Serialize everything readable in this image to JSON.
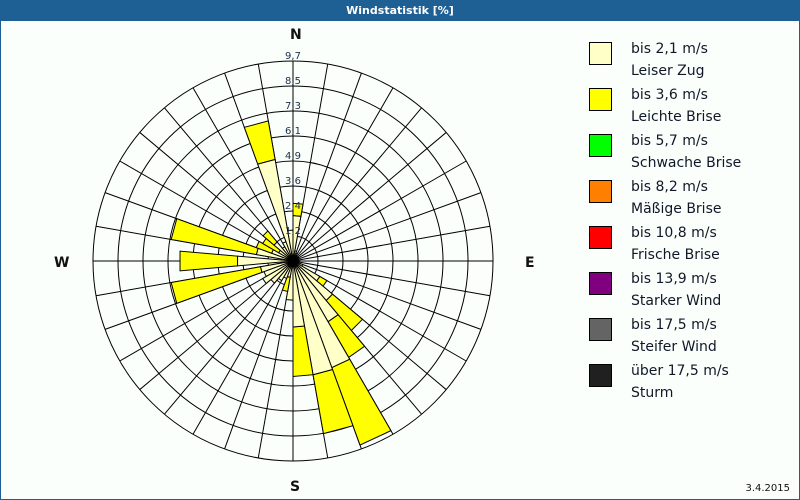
{
  "window": {
    "title": "Windstatistik [%]"
  },
  "compass": {
    "n": "N",
    "e": "E",
    "s": "S",
    "w": "W"
  },
  "footer": {
    "date": "3.4.2015"
  },
  "legend": [
    {
      "range": "bis 2,1 m/s",
      "name": "Leiser Zug",
      "color": "#ffffc8"
    },
    {
      "range": "bis 3,6 m/s",
      "name": "Leichte Brise",
      "color": "#ffff00"
    },
    {
      "range": "bis 5,7 m/s",
      "name": "Schwache Brise",
      "color": "#00ff00"
    },
    {
      "range": "bis 8,2 m/s",
      "name": "Mäßige Brise",
      "color": "#ff8000"
    },
    {
      "range": "bis 10,8 m/s",
      "name": "Frische Brise",
      "color": "#ff0000"
    },
    {
      "range": "bis 13,9 m/s",
      "name": "Starker Wind",
      "color": "#800080"
    },
    {
      "range": "bis 17,5 m/s",
      "name": "Steifer Wind",
      "color": "#646464"
    },
    {
      "range": "über 17,5 m/s",
      "name": "Sturm",
      "color": "#202020"
    }
  ],
  "chart_data": {
    "type": "wind_rose",
    "title": "Windstatistik [%]",
    "unit": "%",
    "rmax": 9.7,
    "ring_labels": [
      "1,2",
      "2,4",
      "3,6",
      "4,9",
      "6,1",
      "7,3",
      "8,5",
      "9,7"
    ],
    "ring_values": [
      1.2,
      2.4,
      3.6,
      4.9,
      6.1,
      7.3,
      8.5,
      9.7
    ],
    "sector_width_deg": 10,
    "series_names": [
      "bis 2,1 m/s",
      "bis 3,6 m/s"
    ],
    "sectors": [
      {
        "dir": 5,
        "light": 2.2,
        "total": 2.8
      },
      {
        "dir": 15,
        "light": 0.5,
        "total": 0.5
      },
      {
        "dir": 25,
        "light": 0.4,
        "total": 0.4
      },
      {
        "dir": 35,
        "light": 0.3,
        "total": 0.3
      },
      {
        "dir": 45,
        "light": 0.3,
        "total": 0.3
      },
      {
        "dir": 55,
        "light": 0.3,
        "total": 0.3
      },
      {
        "dir": 65,
        "light": 0.2,
        "total": 0.2
      },
      {
        "dir": 75,
        "light": 0.2,
        "total": 0.2
      },
      {
        "dir": 85,
        "light": 0.2,
        "total": 0.2
      },
      {
        "dir": 95,
        "light": 0.2,
        "total": 0.2
      },
      {
        "dir": 105,
        "light": 0.3,
        "total": 0.3
      },
      {
        "dir": 115,
        "light": 0.5,
        "total": 0.5
      },
      {
        "dir": 125,
        "light": 1.5,
        "total": 1.9
      },
      {
        "dir": 135,
        "light": 2.5,
        "total": 4.4
      },
      {
        "dir": 145,
        "light": 3.4,
        "total": 5.4
      },
      {
        "dir": 155,
        "light": 5.5,
        "total": 9.5
      },
      {
        "dir": 165,
        "light": 5.6,
        "total": 8.5
      },
      {
        "dir": 175,
        "light": 3.2,
        "total": 5.6
      },
      {
        "dir": 185,
        "light": 1.9,
        "total": 1.9
      },
      {
        "dir": 195,
        "light": 0.8,
        "total": 1.5
      },
      {
        "dir": 205,
        "light": 0.9,
        "total": 0.9
      },
      {
        "dir": 215,
        "light": 1.1,
        "total": 1.1
      },
      {
        "dir": 225,
        "light": 1.4,
        "total": 1.4
      },
      {
        "dir": 235,
        "light": 1.7,
        "total": 1.7
      },
      {
        "dir": 245,
        "light": 1.5,
        "total": 1.5
      },
      {
        "dir": 255,
        "light": 1.6,
        "total": 6.0
      },
      {
        "dir": 270,
        "light": 2.7,
        "total": 5.5
      },
      {
        "dir": 285,
        "light": 1.8,
        "total": 6.0
      },
      {
        "dir": 295,
        "light": 1.1,
        "total": 1.9
      },
      {
        "dir": 305,
        "light": 0.8,
        "total": 1.7
      },
      {
        "dir": 315,
        "light": 1.2,
        "total": 1.9
      },
      {
        "dir": 325,
        "light": 0.8,
        "total": 0.8
      },
      {
        "dir": 335,
        "light": 1.0,
        "total": 1.0
      },
      {
        "dir": 345,
        "light": 5.0,
        "total": 6.9
      },
      {
        "dir": 355,
        "light": 1.5,
        "total": 1.5
      }
    ]
  }
}
